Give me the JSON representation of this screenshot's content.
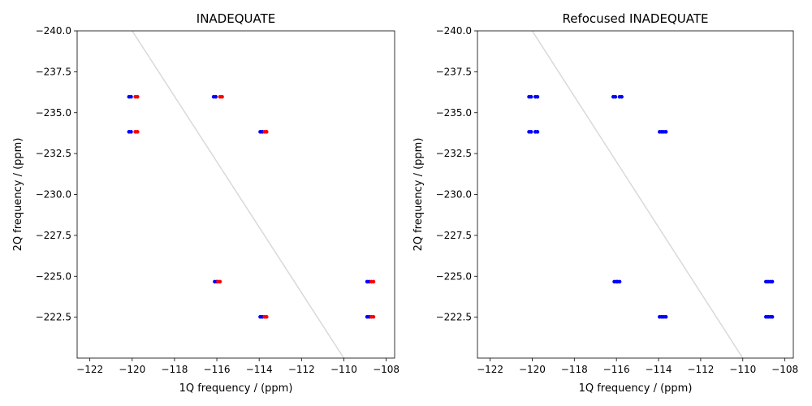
{
  "chart_data": [
    {
      "type": "scatter",
      "title": "INADEQUATE",
      "xlabel": "1Q frequency / (ppm)",
      "ylabel": "2Q frequency / (ppm)",
      "xlim": [
        -122.6,
        -107.6
      ],
      "ylim": [
        -240.0,
        -220.0
      ],
      "y_inverted": true,
      "xticks": [
        -122,
        -120,
        -118,
        -116,
        -114,
        -112,
        -110,
        -108
      ],
      "xtick_labels": [
        "−122",
        "−120",
        "−118",
        "−116",
        "−114",
        "−112",
        "−110",
        "−108"
      ],
      "yticks": [
        -240.0,
        -237.5,
        -235.0,
        -232.5,
        -230.0,
        -227.5,
        -225.0,
        -222.5
      ],
      "ytick_labels": [
        "−240.0",
        "−237.5",
        "−235.0",
        "−232.5",
        "−230.0",
        "−227.5",
        "−225.0",
        "−222.5"
      ],
      "grid": false,
      "reference_line": {
        "x": [
          -120.0,
          -110.0
        ],
        "y": [
          -240.0,
          -220.0
        ],
        "color": "#d9d9d9"
      },
      "series": [
        {
          "color": "#0000ff",
          "points": [
            {
              "x": -120.15,
              "y": -235.97
            },
            {
              "x": -120.05,
              "y": -235.97
            },
            {
              "x": -120.15,
              "y": -233.83
            },
            {
              "x": -120.05,
              "y": -233.83
            },
            {
              "x": -116.15,
              "y": -235.97
            },
            {
              "x": -116.05,
              "y": -235.97
            },
            {
              "x": -113.95,
              "y": -233.83
            },
            {
              "x": -113.85,
              "y": -233.83
            },
            {
              "x": -116.1,
              "y": -224.67
            },
            {
              "x": -116.0,
              "y": -224.67
            },
            {
              "x": -113.95,
              "y": -222.52
            },
            {
              "x": -113.85,
              "y": -222.52
            },
            {
              "x": -108.9,
              "y": -224.67
            },
            {
              "x": -108.8,
              "y": -224.67
            },
            {
              "x": -108.9,
              "y": -222.52
            },
            {
              "x": -108.8,
              "y": -222.52
            }
          ]
        },
        {
          "color": "#ff0000",
          "points": [
            {
              "x": -119.85,
              "y": -235.97
            },
            {
              "x": -119.75,
              "y": -235.97
            },
            {
              "x": -119.85,
              "y": -233.83
            },
            {
              "x": -119.75,
              "y": -233.83
            },
            {
              "x": -115.85,
              "y": -235.97
            },
            {
              "x": -115.75,
              "y": -235.97
            },
            {
              "x": -113.75,
              "y": -233.83
            },
            {
              "x": -113.65,
              "y": -233.83
            },
            {
              "x": -115.95,
              "y": -224.67
            },
            {
              "x": -115.85,
              "y": -224.67
            },
            {
              "x": -113.75,
              "y": -222.52
            },
            {
              "x": -113.65,
              "y": -222.52
            },
            {
              "x": -108.7,
              "y": -224.67
            },
            {
              "x": -108.6,
              "y": -224.67
            },
            {
              "x": -108.7,
              "y": -222.52
            },
            {
              "x": -108.6,
              "y": -222.52
            }
          ]
        }
      ]
    },
    {
      "type": "scatter",
      "title": "Refocused INADEQUATE",
      "xlabel": "1Q frequency / (ppm)",
      "ylabel": "2Q frequency / (ppm)",
      "xlim": [
        -122.6,
        -107.6
      ],
      "ylim": [
        -240.0,
        -220.0
      ],
      "y_inverted": true,
      "xticks": [
        -122,
        -120,
        -118,
        -116,
        -114,
        -112,
        -110,
        -108
      ],
      "xtick_labels": [
        "−122",
        "−120",
        "−118",
        "−116",
        "−114",
        "−112",
        "−110",
        "−108"
      ],
      "yticks": [
        -240.0,
        -237.5,
        -235.0,
        -232.5,
        -230.0,
        -227.5,
        -225.0,
        -222.5
      ],
      "ytick_labels": [
        "−240.0",
        "−237.5",
        "−235.0",
        "−232.5",
        "−230.0",
        "−227.5",
        "−225.0",
        "−222.5"
      ],
      "grid": false,
      "reference_line": {
        "x": [
          -120.0,
          -110.0
        ],
        "y": [
          -240.0,
          -220.0
        ],
        "color": "#d9d9d9"
      },
      "series": [
        {
          "color": "#0000ff",
          "points": [
            {
              "x": -120.15,
              "y": -235.97
            },
            {
              "x": -120.05,
              "y": -235.97
            },
            {
              "x": -119.85,
              "y": -235.97
            },
            {
              "x": -119.75,
              "y": -235.97
            },
            {
              "x": -120.15,
              "y": -233.83
            },
            {
              "x": -120.05,
              "y": -233.83
            },
            {
              "x": -119.85,
              "y": -233.83
            },
            {
              "x": -119.75,
              "y": -233.83
            },
            {
              "x": -116.15,
              "y": -235.97
            },
            {
              "x": -116.05,
              "y": -235.97
            },
            {
              "x": -115.85,
              "y": -235.97
            },
            {
              "x": -115.75,
              "y": -235.97
            },
            {
              "x": -113.95,
              "y": -233.83
            },
            {
              "x": -113.85,
              "y": -233.83
            },
            {
              "x": -113.75,
              "y": -233.83
            },
            {
              "x": -113.65,
              "y": -233.83
            },
            {
              "x": -116.1,
              "y": -224.67
            },
            {
              "x": -116.0,
              "y": -224.67
            },
            {
              "x": -115.95,
              "y": -224.67
            },
            {
              "x": -115.85,
              "y": -224.67
            },
            {
              "x": -113.95,
              "y": -222.52
            },
            {
              "x": -113.85,
              "y": -222.52
            },
            {
              "x": -113.75,
              "y": -222.52
            },
            {
              "x": -113.65,
              "y": -222.52
            },
            {
              "x": -108.9,
              "y": -224.67
            },
            {
              "x": -108.8,
              "y": -224.67
            },
            {
              "x": -108.7,
              "y": -224.67
            },
            {
              "x": -108.6,
              "y": -224.67
            },
            {
              "x": -108.9,
              "y": -222.52
            },
            {
              "x": -108.8,
              "y": -222.52
            },
            {
              "x": -108.7,
              "y": -222.52
            },
            {
              "x": -108.6,
              "y": -222.52
            }
          ]
        }
      ]
    }
  ]
}
